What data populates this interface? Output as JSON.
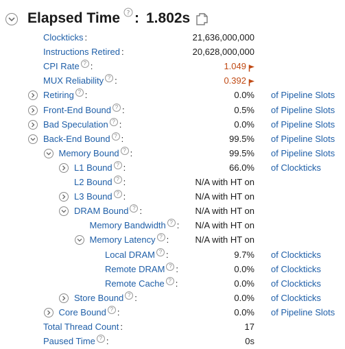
{
  "header": {
    "title": "Elapsed Time",
    "colon": ":",
    "value": "1.802s"
  },
  "colors": {
    "link": "#1f5fa8",
    "warning": "#c04a14",
    "text": "#1a1a1a"
  },
  "rows": [
    {
      "label": "Clockticks",
      "value": "21,636,000,000",
      "unit": "",
      "toggle": "none",
      "help": false,
      "warn": false
    },
    {
      "label": "Instructions Retired",
      "value": "20,628,000,000",
      "unit": "",
      "toggle": "none",
      "help": false,
      "warn": false
    },
    {
      "label": "CPI Rate",
      "value": "1.049",
      "unit": "",
      "toggle": "none",
      "help": true,
      "warn": true
    },
    {
      "label": "MUX Reliability",
      "value": "0.392",
      "unit": "",
      "toggle": "none",
      "help": true,
      "warn": true
    },
    {
      "label": "Retiring",
      "value": "0.0%",
      "unit": "of Pipeline Slots",
      "toggle": "collapsed",
      "help": true,
      "warn": false
    },
    {
      "label": "Front-End Bound",
      "value": "0.5%",
      "unit": "of Pipeline Slots",
      "toggle": "collapsed",
      "help": true,
      "warn": false
    },
    {
      "label": "Bad Speculation",
      "value": "0.0%",
      "unit": "of Pipeline Slots",
      "toggle": "collapsed",
      "help": true,
      "warn": false
    },
    {
      "label": "Back-End Bound",
      "value": "99.5%",
      "unit": "of Pipeline Slots",
      "toggle": "expanded",
      "help": true,
      "warn": false
    },
    {
      "label": "Memory Bound",
      "value": "99.5%",
      "unit": "of Pipeline Slots",
      "toggle": "expanded",
      "help": true,
      "warn": false
    },
    {
      "label": "L1 Bound",
      "value": "66.0%",
      "unit": "of Clockticks",
      "toggle": "collapsed",
      "help": true,
      "warn": false
    },
    {
      "label": "L2 Bound",
      "value": "N/A with HT on",
      "unit": "",
      "toggle": "none",
      "help": true,
      "warn": false
    },
    {
      "label": "L3 Bound",
      "value": "N/A with HT on",
      "unit": "",
      "toggle": "collapsed",
      "help": true,
      "warn": false
    },
    {
      "label": "DRAM Bound",
      "value": "N/A with HT on",
      "unit": "",
      "toggle": "expanded",
      "help": true,
      "warn": false
    },
    {
      "label": "Memory Bandwidth",
      "value": "N/A with HT on",
      "unit": "",
      "toggle": "none",
      "help": true,
      "warn": false
    },
    {
      "label": "Memory Latency",
      "value": "N/A with HT on",
      "unit": "",
      "toggle": "expanded",
      "help": true,
      "warn": false
    },
    {
      "label": "Local DRAM",
      "value": "9.7%",
      "unit": "of Clockticks",
      "toggle": "none",
      "help": true,
      "warn": false
    },
    {
      "label": "Remote DRAM",
      "value": "0.0%",
      "unit": "of Clockticks",
      "toggle": "none",
      "help": true,
      "warn": false
    },
    {
      "label": "Remote Cache",
      "value": "0.0%",
      "unit": "of Clockticks",
      "toggle": "none",
      "help": true,
      "warn": false
    },
    {
      "label": "Store Bound",
      "value": "0.0%",
      "unit": "of Clockticks",
      "toggle": "collapsed",
      "help": true,
      "warn": false
    },
    {
      "label": "Core Bound",
      "value": "0.0%",
      "unit": "of Pipeline Slots",
      "toggle": "collapsed",
      "help": true,
      "warn": false
    },
    {
      "label": "Total Thread Count",
      "value": "17",
      "unit": "",
      "toggle": "none",
      "help": false,
      "warn": false
    },
    {
      "label": "Paused Time",
      "value": "0s",
      "unit": "",
      "toggle": "none",
      "help": true,
      "warn": false
    }
  ]
}
